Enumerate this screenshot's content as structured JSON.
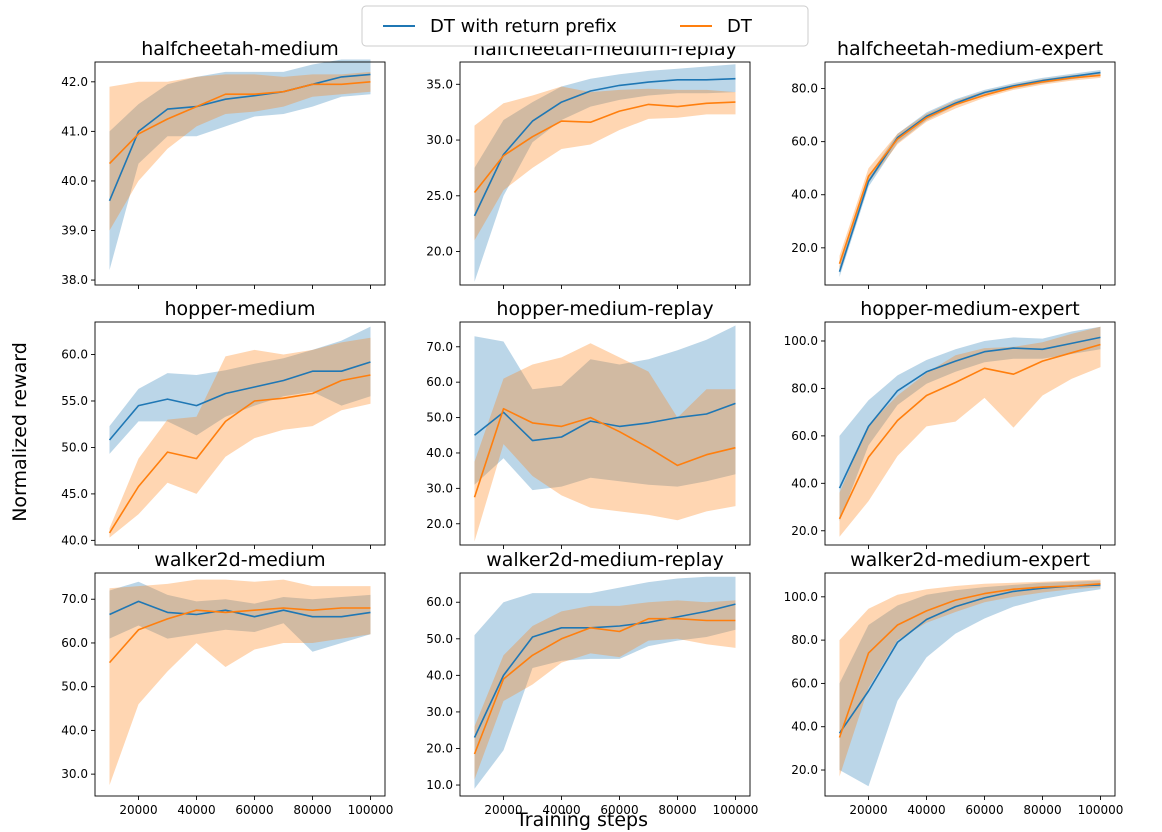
{
  "figure": {
    "xlabel": "Training steps",
    "ylabel": "Normalized reward",
    "legend": {
      "placement": "top-center",
      "entries": [
        {
          "label": "DT with return prefix",
          "color": "#1f77b4"
        },
        {
          "label": "DT",
          "color": "#ff7f0e"
        }
      ]
    },
    "series_colors": {
      "DT with return prefix": "#1f77b4",
      "DT": "#ff7f0e"
    }
  },
  "chart_data": [
    {
      "type": "line",
      "title": "halfcheetah-medium",
      "x": [
        10000,
        20000,
        30000,
        40000,
        50000,
        60000,
        70000,
        80000,
        90000,
        100000
      ],
      "xticks": [
        20000,
        40000,
        60000,
        80000,
        100000
      ],
      "xticks_shown": false,
      "ylim": [
        37.9,
        42.4
      ],
      "yticks": [
        38.0,
        39.0,
        40.0,
        41.0,
        42.0
      ],
      "grid": false,
      "series": [
        {
          "name": "DT with return prefix",
          "values": [
            39.6,
            41.0,
            41.45,
            41.5,
            41.65,
            41.72,
            41.8,
            41.95,
            42.1,
            42.15
          ],
          "lower": [
            38.2,
            40.35,
            40.9,
            40.9,
            41.1,
            41.3,
            41.35,
            41.5,
            41.7,
            41.75
          ],
          "upper": [
            41.0,
            41.55,
            41.95,
            42.1,
            42.2,
            42.2,
            42.2,
            42.35,
            42.45,
            42.45
          ]
        },
        {
          "name": "DT",
          "values": [
            40.35,
            40.95,
            41.25,
            41.5,
            41.75,
            41.75,
            41.8,
            41.95,
            41.95,
            42.0
          ],
          "lower": [
            39.0,
            40.0,
            40.65,
            41.1,
            41.35,
            41.4,
            41.5,
            41.7,
            41.75,
            41.8
          ],
          "upper": [
            41.9,
            42.0,
            42.0,
            42.1,
            42.15,
            42.15,
            42.1,
            42.15,
            42.15,
            42.2
          ]
        }
      ]
    },
    {
      "type": "line",
      "title": "halfcheetah-medium-replay",
      "x": [
        10000,
        20000,
        30000,
        40000,
        50000,
        60000,
        70000,
        80000,
        90000,
        100000
      ],
      "xticks": [
        20000,
        40000,
        60000,
        80000,
        100000
      ],
      "xticks_shown": false,
      "ylim": [
        17.0,
        37.0
      ],
      "yticks": [
        20.0,
        25.0,
        30.0,
        35.0
      ],
      "grid": false,
      "series": [
        {
          "name": "DT with return prefix",
          "values": [
            23.2,
            28.7,
            31.7,
            33.4,
            34.4,
            34.9,
            35.2,
            35.4,
            35.4,
            35.5
          ],
          "lower": [
            17.3,
            25.0,
            29.8,
            31.8,
            33.0,
            33.6,
            34.0,
            34.2,
            34.2,
            34.3
          ],
          "upper": [
            27.5,
            31.8,
            33.4,
            34.8,
            35.5,
            35.9,
            36.2,
            36.4,
            36.6,
            36.8
          ]
        },
        {
          "name": "DT",
          "values": [
            25.3,
            28.6,
            30.3,
            31.7,
            31.6,
            32.6,
            33.2,
            33.0,
            33.3,
            33.4
          ],
          "lower": [
            21.0,
            25.5,
            27.5,
            29.2,
            29.6,
            30.9,
            31.9,
            32.0,
            32.3,
            32.3
          ],
          "upper": [
            31.3,
            33.3,
            34.0,
            34.8,
            34.3,
            34.5,
            34.6,
            34.5,
            34.5,
            34.3
          ]
        }
      ]
    },
    {
      "type": "line",
      "title": "halfcheetah-medium-expert",
      "x": [
        10000,
        20000,
        30000,
        40000,
        50000,
        60000,
        70000,
        80000,
        90000,
        100000
      ],
      "xticks": [
        20000,
        40000,
        60000,
        80000,
        100000
      ],
      "xticks_shown": false,
      "ylim": [
        6.0,
        90.0
      ],
      "yticks": [
        20.0,
        40.0,
        60.0,
        80.0
      ],
      "grid": false,
      "series": [
        {
          "name": "DT with return prefix",
          "values": [
            11.0,
            45.0,
            61.5,
            69.5,
            74.5,
            78.5,
            81.0,
            83.0,
            84.5,
            86.0
          ],
          "lower": [
            9.0,
            43.0,
            59.5,
            68.0,
            73.5,
            77.5,
            80.0,
            82.0,
            83.5,
            85.0
          ],
          "upper": [
            13.0,
            47.0,
            63.0,
            71.0,
            76.0,
            79.5,
            82.0,
            84.0,
            85.5,
            87.0
          ]
        },
        {
          "name": "DT",
          "values": [
            14.0,
            47.0,
            61.0,
            69.0,
            74.0,
            77.5,
            80.5,
            82.5,
            84.0,
            85.0
          ],
          "lower": [
            11.0,
            44.5,
            59.0,
            67.5,
            72.5,
            76.5,
            79.5,
            81.5,
            83.0,
            84.0
          ],
          "upper": [
            17.0,
            50.0,
            63.0,
            70.5,
            75.5,
            79.0,
            81.5,
            83.5,
            85.0,
            86.0
          ]
        }
      ]
    },
    {
      "type": "line",
      "title": "hopper-medium",
      "x": [
        10000,
        20000,
        30000,
        40000,
        50000,
        60000,
        70000,
        80000,
        90000,
        100000
      ],
      "xticks": [
        20000,
        40000,
        60000,
        80000,
        100000
      ],
      "xticks_shown": false,
      "ylim": [
        39.5,
        63.5
      ],
      "yticks": [
        40.0,
        45.0,
        50.0,
        55.0,
        60.0
      ],
      "grid": false,
      "series": [
        {
          "name": "DT with return prefix",
          "values": [
            50.8,
            54.5,
            55.2,
            54.5,
            55.8,
            56.5,
            57.2,
            58.2,
            58.2,
            59.2
          ],
          "lower": [
            49.3,
            52.8,
            52.8,
            51.3,
            53.3,
            54.5,
            55.5,
            56.0,
            54.5,
            55.5
          ],
          "upper": [
            52.3,
            56.3,
            58.0,
            57.8,
            58.3,
            59.0,
            59.6,
            60.5,
            61.5,
            63.0
          ]
        },
        {
          "name": "DT",
          "values": [
            40.8,
            45.8,
            49.5,
            48.8,
            52.8,
            55.0,
            55.3,
            55.8,
            57.2,
            57.8
          ],
          "lower": [
            40.3,
            42.8,
            46.2,
            45.0,
            49.0,
            51.0,
            51.9,
            52.3,
            54.0,
            54.7
          ],
          "upper": [
            41.3,
            48.8,
            53.0,
            53.3,
            59.8,
            60.5,
            60.0,
            60.5,
            61.3,
            61.8
          ]
        }
      ]
    },
    {
      "type": "line",
      "title": "hopper-medium-replay",
      "x": [
        10000,
        20000,
        30000,
        40000,
        50000,
        60000,
        70000,
        80000,
        90000,
        100000
      ],
      "xticks": [
        20000,
        40000,
        60000,
        80000,
        100000
      ],
      "xticks_shown": false,
      "ylim": [
        14.0,
        77.0
      ],
      "yticks": [
        20.0,
        30.0,
        40.0,
        50.0,
        60.0,
        70.0
      ],
      "grid": false,
      "series": [
        {
          "name": "DT with return prefix",
          "values": [
            45.0,
            51.5,
            43.5,
            44.5,
            49.0,
            47.5,
            48.5,
            50.0,
            51.0,
            54.0
          ],
          "lower": [
            31.0,
            38.5,
            29.5,
            30.5,
            33.0,
            32.0,
            31.0,
            30.5,
            32.0,
            34.0
          ],
          "upper": [
            73.0,
            71.5,
            58.0,
            59.0,
            66.5,
            65.0,
            66.5,
            69.0,
            72.0,
            76.0
          ]
        },
        {
          "name": "DT",
          "values": [
            27.5,
            52.5,
            48.5,
            47.5,
            50.0,
            46.0,
            41.5,
            36.5,
            39.5,
            41.5
          ],
          "lower": [
            15.0,
            42.5,
            33.5,
            28.0,
            24.5,
            23.5,
            22.5,
            21.0,
            23.5,
            25.0
          ],
          "upper": [
            37.5,
            61.0,
            65.0,
            67.0,
            71.0,
            67.0,
            63.0,
            50.0,
            58.0,
            58.0
          ]
        }
      ]
    },
    {
      "type": "line",
      "title": "hopper-medium-expert",
      "x": [
        10000,
        20000,
        30000,
        40000,
        50000,
        60000,
        70000,
        80000,
        90000,
        100000
      ],
      "xticks": [
        20000,
        40000,
        60000,
        80000,
        100000
      ],
      "xticks_shown": false,
      "ylim": [
        14.0,
        108.0
      ],
      "yticks": [
        20.0,
        40.0,
        60.0,
        80.0,
        100.0
      ],
      "grid": false,
      "series": [
        {
          "name": "DT with return prefix",
          "values": [
            38.0,
            64.0,
            79.0,
            87.0,
            91.5,
            95.5,
            97.0,
            96.5,
            99.0,
            101.5
          ],
          "lower": [
            24.0,
            56.0,
            73.0,
            82.0,
            87.0,
            91.0,
            92.5,
            92.5,
            94.5,
            96.5
          ],
          "upper": [
            60.0,
            75.0,
            85.5,
            92.0,
            96.5,
            100.0,
            101.5,
            101.0,
            104.0,
            106.0
          ]
        },
        {
          "name": "DT",
          "values": [
            25.0,
            51.0,
            66.5,
            77.0,
            82.5,
            88.5,
            86.0,
            91.5,
            95.0,
            98.5
          ],
          "lower": [
            17.5,
            32.5,
            51.5,
            64.0,
            66.0,
            76.0,
            63.5,
            77.0,
            84.0,
            89.0
          ],
          "upper": [
            36.0,
            64.5,
            77.0,
            86.5,
            94.0,
            97.0,
            97.5,
            99.5,
            103.0,
            106.0
          ]
        }
      ]
    },
    {
      "type": "line",
      "title": "walker2d-medium",
      "x": [
        10000,
        20000,
        30000,
        40000,
        50000,
        60000,
        70000,
        80000,
        90000,
        100000
      ],
      "xticks": [
        20000,
        40000,
        60000,
        80000,
        100000
      ],
      "xticks_shown": true,
      "ylim": [
        25.0,
        76.0
      ],
      "yticks": [
        30.0,
        40.0,
        50.0,
        60.0,
        70.0
      ],
      "grid": false,
      "series": [
        {
          "name": "DT with return prefix",
          "values": [
            66.5,
            69.5,
            67.0,
            66.5,
            67.5,
            66.0,
            67.5,
            66.0,
            66.0,
            67.0
          ],
          "lower": [
            61.0,
            64.0,
            61.0,
            62.0,
            63.0,
            62.5,
            64.5,
            58.0,
            60.0,
            62.0
          ],
          "upper": [
            72.0,
            74.0,
            71.0,
            69.5,
            70.0,
            69.0,
            70.5,
            70.0,
            70.5,
            71.0
          ]
        },
        {
          "name": "DT",
          "values": [
            55.5,
            63.0,
            65.5,
            67.5,
            67.0,
            67.5,
            68.0,
            67.5,
            68.0,
            68.0
          ],
          "lower": [
            27.5,
            46.0,
            53.5,
            60.0,
            54.5,
            58.5,
            60.0,
            60.0,
            61.0,
            62.0
          ],
          "upper": [
            72.5,
            73.0,
            73.5,
            74.5,
            74.5,
            74.0,
            74.5,
            73.0,
            73.0,
            73.0
          ]
        }
      ]
    },
    {
      "type": "line",
      "title": "walker2d-medium-replay",
      "x": [
        10000,
        20000,
        30000,
        40000,
        50000,
        60000,
        70000,
        80000,
        90000,
        100000
      ],
      "xticks": [
        20000,
        40000,
        60000,
        80000,
        100000
      ],
      "xticks_shown": true,
      "ylim": [
        7.0,
        68.0
      ],
      "yticks": [
        10.0,
        20.0,
        30.0,
        40.0,
        50.0,
        60.0
      ],
      "grid": false,
      "series": [
        {
          "name": "DT with return prefix",
          "values": [
            23.0,
            40.0,
            50.5,
            53.0,
            53.0,
            53.5,
            54.5,
            56.0,
            57.5,
            59.5
          ],
          "lower": [
            9.0,
            19.5,
            42.0,
            44.0,
            44.5,
            44.5,
            48.0,
            49.5,
            50.5,
            52.5
          ],
          "upper": [
            51.0,
            60.0,
            62.5,
            62.5,
            62.5,
            64.0,
            65.5,
            66.5,
            67.0,
            67.0
          ]
        },
        {
          "name": "DT",
          "values": [
            18.5,
            39.0,
            45.5,
            50.0,
            53.0,
            52.0,
            55.5,
            55.5,
            55.0,
            55.0
          ],
          "lower": [
            11.5,
            33.0,
            37.5,
            43.5,
            46.0,
            45.0,
            49.5,
            50.0,
            48.5,
            47.5
          ],
          "upper": [
            26.0,
            45.5,
            53.5,
            57.5,
            59.0,
            59.0,
            60.0,
            60.5,
            60.0,
            60.5
          ]
        }
      ]
    },
    {
      "type": "line",
      "title": "walker2d-medium-expert",
      "x": [
        10000,
        20000,
        30000,
        40000,
        50000,
        60000,
        70000,
        80000,
        90000,
        100000
      ],
      "xticks": [
        20000,
        40000,
        60000,
        80000,
        100000
      ],
      "xticks_shown": true,
      "ylim": [
        8.0,
        111.0
      ],
      "yticks": [
        20.0,
        40.0,
        60.0,
        80.0,
        100.0
      ],
      "grid": false,
      "series": [
        {
          "name": "DT with return prefix",
          "values": [
            37.0,
            56.5,
            79.0,
            89.5,
            95.5,
            99.5,
            102.5,
            104.0,
            105.0,
            105.5
          ],
          "lower": [
            20.0,
            12.5,
            52.0,
            72.0,
            83.0,
            90.0,
            95.5,
            99.0,
            101.5,
            103.5
          ],
          "upper": [
            60.0,
            87.0,
            96.0,
            101.0,
            103.0,
            104.5,
            105.5,
            106.5,
            107.0,
            107.5
          ]
        },
        {
          "name": "DT",
          "values": [
            35.0,
            74.0,
            87.0,
            93.5,
            98.5,
            101.5,
            103.5,
            104.5,
            105.0,
            106.0
          ],
          "lower": [
            17.0,
            58.0,
            80.0,
            88.0,
            93.0,
            97.5,
            100.0,
            102.0,
            103.5,
            104.5
          ],
          "upper": [
            80.0,
            94.5,
            101.0,
            103.5,
            105.0,
            106.0,
            106.5,
            107.0,
            107.5,
            108.0
          ]
        }
      ]
    }
  ]
}
